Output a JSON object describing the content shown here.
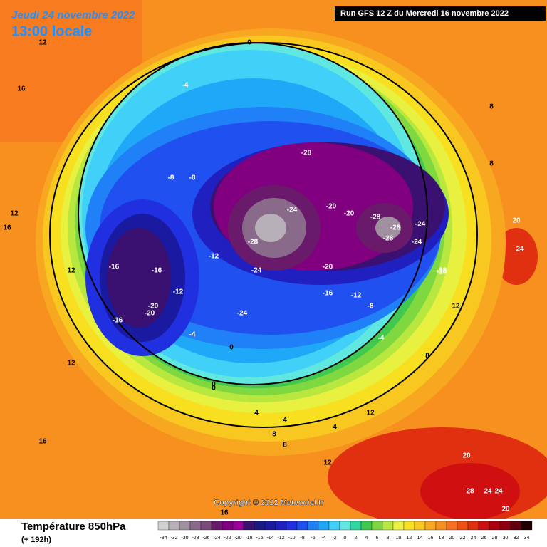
{
  "header": {
    "date": "Jeudi 24 novembre 2022",
    "time": "13:00 locale",
    "run": "Run GFS 12 Z du Mercredi 16 novembre 2022"
  },
  "copyright": "Copyright © 2022 Meteociel.fr",
  "footer": {
    "title": "Température 850hPa",
    "lead": "(+ 192h)"
  },
  "legend": {
    "values": [
      -34,
      -32,
      -30,
      -28,
      -26,
      -24,
      -22,
      -20,
      -18,
      -16,
      -14,
      -12,
      -10,
      -8,
      -6,
      -4,
      -2,
      0,
      2,
      4,
      6,
      8,
      10,
      12,
      14,
      16,
      18,
      20,
      22,
      24,
      26,
      28,
      30,
      32,
      34
    ],
    "colors": [
      "#d0d0d0",
      "#b8b0b8",
      "#a090a0",
      "#8a6a8a",
      "#7a4a7a",
      "#6a1a6a",
      "#800080",
      "#9a009a",
      "#3a1070",
      "#1a1a80",
      "#1a1aa0",
      "#2020c0",
      "#2030e0",
      "#2050f0",
      "#2080f8",
      "#20a8f8",
      "#40d0f8",
      "#60e8e0",
      "#30d8a0",
      "#40c850",
      "#80d840",
      "#b8e840",
      "#e8f040",
      "#f8e020",
      "#f8c820",
      "#f8a820",
      "#f89020",
      "#f87020",
      "#f05010",
      "#e03010",
      "#d01010",
      "#b00010",
      "#900010",
      "#600010",
      "#200000"
    ]
  },
  "map_labels": [
    "12",
    "16",
    "12",
    "12",
    "16",
    "8",
    "12",
    "8",
    "4",
    "0",
    "-4",
    "0",
    "-4",
    "-8",
    "-12",
    "-16",
    "-16",
    "-20",
    "-20",
    "-16",
    "-12",
    "-8",
    "-24",
    "-28",
    "-28",
    "-24",
    "-20",
    "-20",
    "-28",
    "-24",
    "-20",
    "-28",
    "-28",
    "-24",
    "-24",
    "-20",
    "-16",
    "-12",
    "-12",
    "-8",
    "-4",
    "0",
    "0",
    "4",
    "4",
    "8",
    "8",
    "12",
    "12",
    "16",
    "20",
    "24",
    "20",
    "24",
    "28",
    "24",
    "20",
    "16",
    "12",
    "8"
  ]
}
